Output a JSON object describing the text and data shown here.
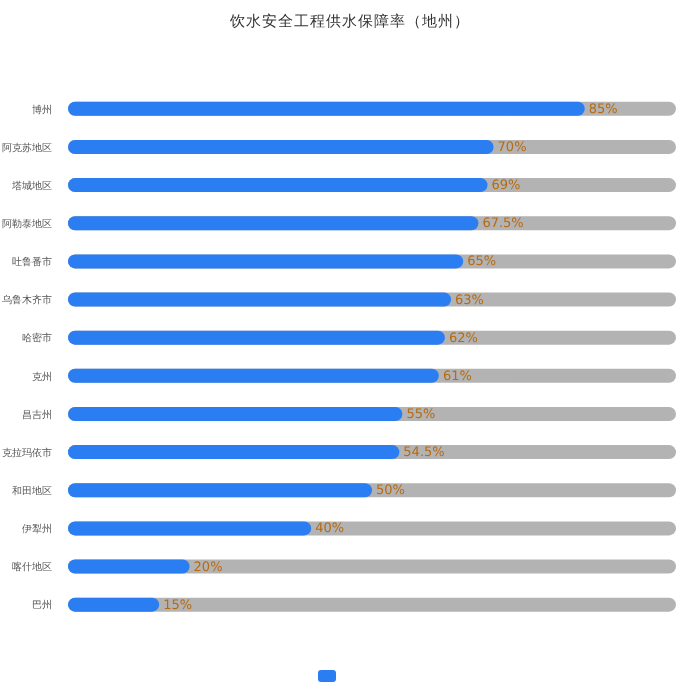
{
  "chart_data": {
    "type": "bar",
    "orientation": "horizontal",
    "title": "饮水安全工程供水保障率（地州）",
    "categories": [
      "博州",
      "阿克苏地区",
      "塔城地区",
      "阿勒泰地区",
      "吐鲁番市",
      "乌鲁木齐市",
      "哈密市",
      "克州",
      "昌吉州",
      "克拉玛依市",
      "和田地区",
      "伊犁州",
      "喀什地区",
      "巴州"
    ],
    "series": [
      {
        "color": "#2b7ef2",
        "values": [
          85,
          70,
          69,
          67.5,
          65,
          63,
          62,
          61,
          55,
          54.5,
          50,
          40,
          20,
          15
        ],
        "value_labels": [
          "85%",
          "70%",
          "69%",
          "67.5%",
          "65%",
          "63%",
          "62%",
          "61%",
          "55%",
          "54.5%",
          "50%",
          "40%",
          "20%",
          "15%"
        ]
      }
    ],
    "xlim": [
      0,
      100
    ]
  }
}
